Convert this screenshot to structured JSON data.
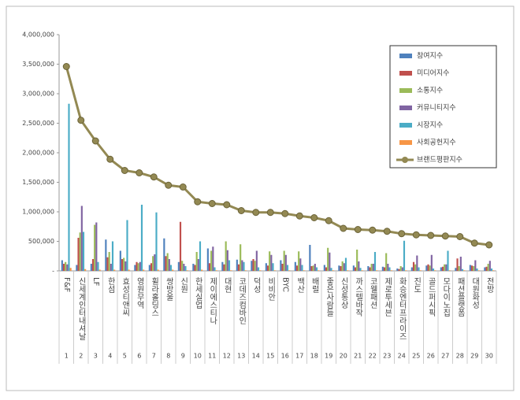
{
  "chart_data": {
    "type": "bar_line",
    "categories": [
      "F&F",
      "신세계인터내셔날",
      "LF",
      "한섬",
      "효성티앤씨",
      "영원무역",
      "휠라홀딩스",
      "쌍방울",
      "신원",
      "한세실업",
      "제이에스티나",
      "대현",
      "코데즈컴바인",
      "덕성",
      "비비안",
      "BYC",
      "백산",
      "배럴",
      "좋은사람들",
      "신성통상",
      "까스텔바작",
      "코웰패션",
      "제로투세븐",
      "화승엔터프라이즈",
      "진도",
      "골드퍼시픽",
      "모다이노칩",
      "패션플랫폼",
      "대원화성",
      "전방"
    ],
    "ranks": [
      1,
      2,
      3,
      4,
      5,
      6,
      7,
      8,
      9,
      10,
      11,
      12,
      13,
      14,
      15,
      16,
      17,
      18,
      19,
      20,
      21,
      22,
      23,
      24,
      25,
      26,
      27,
      28,
      29,
      30
    ],
    "series": [
      {
        "name": "참여지수",
        "color": "#4f81bd",
        "values": [
          180000,
          100000,
          120000,
          530000,
          340000,
          100000,
          100000,
          550000,
          150000,
          120000,
          380000,
          150000,
          190000,
          170000,
          130000,
          180000,
          150000,
          440000,
          100000,
          90000,
          90000,
          80000,
          70000,
          40000,
          60000,
          90000,
          60000,
          50000,
          100000,
          60000
        ]
      },
      {
        "name": "미디어지수",
        "color": "#c0504d",
        "values": [
          120000,
          560000,
          200000,
          230000,
          200000,
          150000,
          130000,
          250000,
          830000,
          100000,
          130000,
          110000,
          110000,
          200000,
          90000,
          120000,
          90000,
          80000,
          60000,
          80000,
          60000,
          60000,
          60000,
          30000,
          150000,
          110000,
          70000,
          210000,
          90000,
          70000
        ]
      },
      {
        "name": "소통지수",
        "color": "#9bbb59",
        "values": [
          150000,
          650000,
          780000,
          320000,
          220000,
          130000,
          250000,
          300000,
          170000,
          320000,
          340000,
          500000,
          450000,
          170000,
          330000,
          340000,
          330000,
          90000,
          390000,
          160000,
          360000,
          120000,
          300000,
          80000,
          110000,
          90000,
          110000,
          80000,
          80000,
          120000
        ]
      },
      {
        "name": "커뮤니티지수",
        "color": "#8064a2",
        "values": [
          110000,
          1100000,
          820000,
          120000,
          160000,
          150000,
          280000,
          200000,
          120000,
          200000,
          410000,
          350000,
          180000,
          340000,
          270000,
          270000,
          210000,
          120000,
          310000,
          130000,
          160000,
          120000,
          120000,
          60000,
          260000,
          270000,
          110000,
          240000,
          180000,
          170000
        ]
      },
      {
        "name": "시장지수",
        "color": "#4bacc6",
        "values": [
          2830000,
          660000,
          150000,
          500000,
          860000,
          1120000,
          990000,
          100000,
          80000,
          500000,
          60000,
          180000,
          150000,
          60000,
          130000,
          100000,
          100000,
          60000,
          50000,
          220000,
          50000,
          320000,
          60000,
          510000,
          60000,
          40000,
          340000,
          30000,
          40000,
          40000
        ]
      },
      {
        "name": "사회공헌지수",
        "color": "#f79646",
        "values": [
          50000,
          30000,
          20000,
          20000,
          20000,
          20000,
          20000,
          20000,
          10000,
          20000,
          10000,
          10000,
          10000,
          10000,
          10000,
          10000,
          10000,
          10000,
          10000,
          10000,
          10000,
          10000,
          10000,
          10000,
          10000,
          10000,
          10000,
          10000,
          10000,
          10000
        ]
      },
      {
        "name": "브랜드평판지수",
        "color": "#938953",
        "line": true,
        "values": [
          3460000,
          2550000,
          2200000,
          1890000,
          1700000,
          1660000,
          1590000,
          1450000,
          1420000,
          1170000,
          1140000,
          1120000,
          1020000,
          990000,
          990000,
          970000,
          930000,
          900000,
          850000,
          720000,
          700000,
          690000,
          670000,
          630000,
          610000,
          600000,
          590000,
          580000,
          470000,
          440000
        ]
      }
    ],
    "ylim": [
      0,
      4000000
    ],
    "yticks": [
      {
        "value": 0,
        "label": "-"
      },
      {
        "value": 500000,
        "label": "500,000"
      },
      {
        "value": 1000000,
        "label": "1,000,000"
      },
      {
        "value": 1500000,
        "label": "1,500,000"
      },
      {
        "value": 2000000,
        "label": "2,000,000"
      },
      {
        "value": 2500000,
        "label": "2,500,000"
      },
      {
        "value": 3000000,
        "label": "3,000,000"
      },
      {
        "value": 3500000,
        "label": "3,500,000"
      },
      {
        "value": 4000000,
        "label": "4,000,000"
      }
    ],
    "legend": "upper-right"
  }
}
